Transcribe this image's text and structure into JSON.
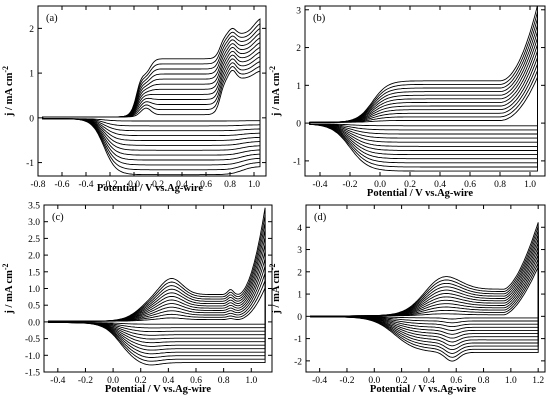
{
  "figure": {
    "panel_count": 4,
    "line_color": "#000000",
    "background": "#ffffff"
  },
  "chart_data": [
    {
      "type": "line",
      "label": "(a)",
      "xlabel": "Potential / V vs.Ag-wire",
      "ylabel": "j / mA cm",
      "ylabel_sup": "-2",
      "xlim": [
        -0.8,
        1.1
      ],
      "ylim": [
        -1.3,
        2.5
      ],
      "xticks": [
        -0.8,
        -0.6,
        -0.4,
        -0.2,
        0.0,
        0.2,
        0.4,
        0.6,
        0.8,
        1.0
      ],
      "xtick_labels": [
        "-0.8",
        "-0.6",
        "-0.4",
        "-0.2",
        "0.0",
        "0.2",
        "0.4",
        "0.6",
        "0.8",
        "1.0"
      ],
      "yticks": [
        -1,
        0,
        1,
        2
      ],
      "ytick_labels": [
        "-1",
        "0",
        "1",
        "2"
      ],
      "cycles": 12,
      "anodic_plateau": [
        0.05,
        1.3
      ],
      "peaks": [
        {
          "x": 0.1,
          "y": [
            0.2,
            1.05
          ]
        },
        {
          "x": 0.82,
          "y": [
            1.0,
            1.95
          ]
        }
      ],
      "vertex": {
        "x": 1.05,
        "y": [
          1.2,
          2.35
        ]
      },
      "cathodic_plateau": [
        -0.05,
        -1.25
      ]
    },
    {
      "type": "line",
      "label": "(b)",
      "xlabel": "Potential / V vs.Ag-wire",
      "ylabel": "j / mA cm",
      "ylabel_sup": "-2",
      "xlim": [
        -0.5,
        1.1
      ],
      "ylim": [
        -1.4,
        3.1
      ],
      "xticks": [
        -0.4,
        -0.2,
        0.0,
        0.2,
        0.4,
        0.6,
        0.8,
        1.0
      ],
      "xtick_labels": [
        "-0.4",
        "-0.2",
        "0.0",
        "0.2",
        "0.4",
        "0.6",
        "0.8",
        "1.0"
      ],
      "yticks": [
        -1,
        0,
        1,
        2,
        3
      ],
      "ytick_labels": [
        "-1",
        "0",
        "1",
        "2",
        "3"
      ],
      "cycles": 12,
      "anodic_plateau": [
        0.05,
        1.1
      ],
      "vertex": {
        "x": 1.05,
        "y": [
          1.2,
          3.1
        ]
      },
      "cathodic_plateau": [
        -0.05,
        -1.25
      ]
    },
    {
      "type": "line",
      "label": "(c)",
      "xlabel": "Potential / V vs.Ag-wire",
      "ylabel": "j / mA cm",
      "ylabel_sup": "-2",
      "xlim": [
        -0.5,
        1.15
      ],
      "ylim": [
        -1.5,
        3.5
      ],
      "xticks": [
        -0.4,
        -0.2,
        0.0,
        0.2,
        0.4,
        0.6,
        0.8,
        1.0
      ],
      "xtick_labels": [
        "-0.4",
        "-0.2",
        "0.0",
        "0.2",
        "0.4",
        "0.6",
        "0.8",
        "1.0"
      ],
      "yticks": [
        -1.5,
        -1.0,
        -0.5,
        0.0,
        0.5,
        1.0,
        1.5,
        2.0,
        2.5,
        3.0,
        3.5
      ],
      "ytick_labels": [
        "-1.5",
        "-1.0",
        "-0.5",
        "0.0",
        "0.5",
        "1.0",
        "1.5",
        "2.0",
        "2.5",
        "3.0",
        "3.5"
      ],
      "cycles": 12,
      "anodic_plateau": [
        0.05,
        0.8
      ],
      "peaks": [
        {
          "x": 0.42,
          "y": [
            0.1,
            1.3
          ]
        },
        {
          "x": 0.85,
          "y": [
            0.1,
            1.05
          ]
        }
      ],
      "vertex": {
        "x": 1.1,
        "y": [
          1.0,
          3.4
        ]
      },
      "cathodic_plateau": [
        -0.05,
        -1.2
      ],
      "cathodic_peak": {
        "x": 0.25,
        "y": [
          -0.05,
          -1.3
        ]
      }
    },
    {
      "type": "line",
      "label": "(d)",
      "xlabel": "Potential / V vs.Ag-wire",
      "ylabel": "j / mA cm",
      "ylabel_sup": "-2",
      "xlim": [
        -0.5,
        1.25
      ],
      "ylim": [
        -2.5,
        5.0
      ],
      "xticks": [
        -0.4,
        -0.2,
        0.0,
        0.2,
        0.4,
        0.6,
        0.8,
        1.0,
        1.2
      ],
      "xtick_labels": [
        "-0.4",
        "-0.2",
        "0.0",
        "0.2",
        "0.4",
        "0.6",
        "0.8",
        "1.0",
        "1.2"
      ],
      "yticks": [
        -2,
        -1,
        0,
        1,
        2,
        3,
        4
      ],
      "ytick_labels": [
        "-2",
        "-1",
        "0",
        "1",
        "2",
        "3",
        "4"
      ],
      "cycles": 12,
      "anodic_plateau": [
        0.05,
        1.2
      ],
      "peaks": [
        {
          "x": 0.5,
          "y": [
            0.1,
            1.9
          ]
        }
      ],
      "vertex": {
        "x": 1.2,
        "y": [
          2.2,
          4.2
        ]
      },
      "cathodic_plateau": [
        -0.05,
        -1.6
      ],
      "cathodic_peak": {
        "x": 0.57,
        "y": [
          -0.1,
          -2.0
        ]
      }
    }
  ]
}
